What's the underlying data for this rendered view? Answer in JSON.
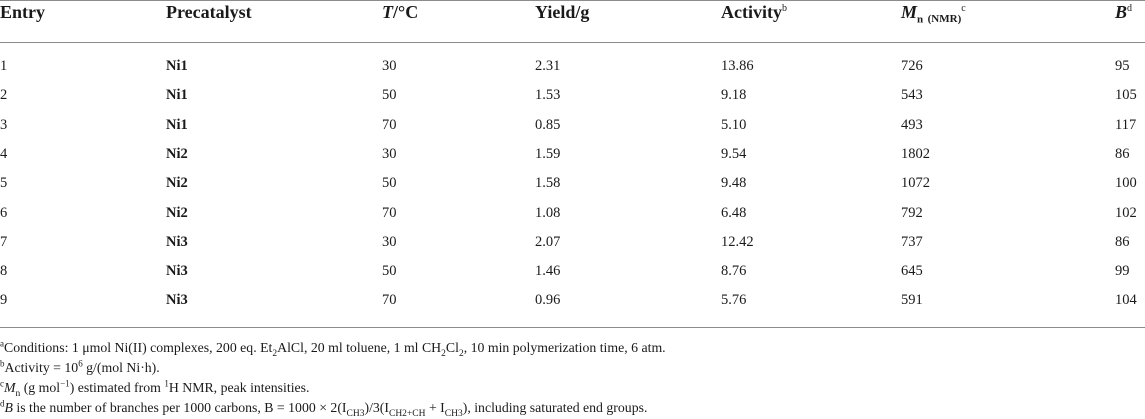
{
  "table": {
    "headers": {
      "entry": "Entry",
      "precatalyst": "Precatalyst",
      "temp_symbol": "T",
      "temp_unit": "/°C",
      "yield": "Yield/g",
      "activity": "Activity",
      "activity_mark": "b",
      "mn_symbol": "M",
      "mn_sub": "n",
      "mn_method": "(NMR)",
      "mn_mark": "c",
      "b_symbol": "B",
      "b_mark": "d"
    },
    "rows": [
      {
        "entry": "1",
        "precatalyst": "Ni1",
        "temp": "30",
        "yield": "2.31",
        "activity": "13.86",
        "mn": "726",
        "b": "95"
      },
      {
        "entry": "2",
        "precatalyst": "Ni1",
        "temp": "50",
        "yield": "1.53",
        "activity": "9.18",
        "mn": "543",
        "b": "105"
      },
      {
        "entry": "3",
        "precatalyst": "Ni1",
        "temp": "70",
        "yield": "0.85",
        "activity": "5.10",
        "mn": "493",
        "b": "117"
      },
      {
        "entry": "4",
        "precatalyst": "Ni2",
        "temp": "30",
        "yield": "1.59",
        "activity": "9.54",
        "mn": "1802",
        "b": "86"
      },
      {
        "entry": "5",
        "precatalyst": "Ni2",
        "temp": "50",
        "yield": "1.58",
        "activity": "9.48",
        "mn": "1072",
        "b": "100"
      },
      {
        "entry": "6",
        "precatalyst": "Ni2",
        "temp": "70",
        "yield": "1.08",
        "activity": "6.48",
        "mn": "792",
        "b": "102"
      },
      {
        "entry": "7",
        "precatalyst": "Ni3",
        "temp": "30",
        "yield": "2.07",
        "activity": "12.42",
        "mn": "737",
        "b": "86"
      },
      {
        "entry": "8",
        "precatalyst": "Ni3",
        "temp": "50",
        "yield": "1.46",
        "activity": "8.76",
        "mn": "645",
        "b": "99"
      },
      {
        "entry": "9",
        "precatalyst": "Ni3",
        "temp": "70",
        "yield": "0.96",
        "activity": "5.76",
        "mn": "591",
        "b": "104"
      }
    ]
  },
  "footnotes": {
    "a": {
      "mark": "a",
      "p1": "Conditions: 1 μmol Ni(II) complexes, 200 eq. Et",
      "s1": "2",
      "p2": "AlCl, 20 ml toluene, 1 ml CH",
      "s2": "2",
      "p3": "Cl",
      "s3": "2",
      "p4": ", 10 min polymerization time, 6 atm."
    },
    "b": {
      "mark": "b",
      "p1": "Activity = 10",
      "sup": "6",
      "p2": " g/(mol Ni·h)."
    },
    "c": {
      "mark": "c",
      "sym": "M",
      "sub": "n",
      "p1": " (g mol",
      "sup": "−1",
      "p2": ") estimated from ",
      "sup2": "1",
      "p3": "H NMR, peak intensities."
    },
    "d": {
      "mark": "d",
      "sym": "B",
      "p1": " is the number of branches per 1000 carbons, B = 1000 × 2(I",
      "s1": "CH3",
      "p2": ")/3(I",
      "s2": "CH2+CH",
      "p3": " + I",
      "s3": "CH3",
      "p4": "), including saturated end groups."
    }
  }
}
